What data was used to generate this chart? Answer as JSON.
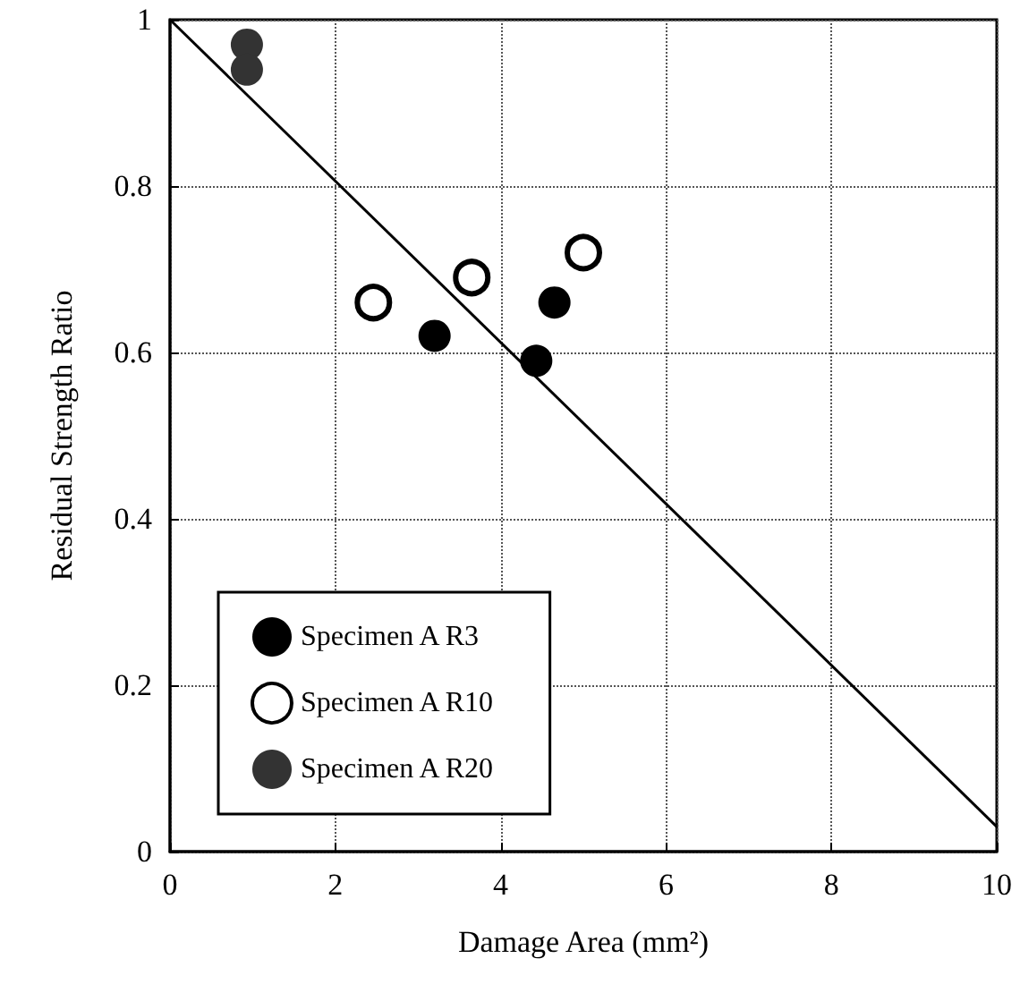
{
  "chart_data": {
    "type": "scatter",
    "xlabel": "Damage Area (mm²)",
    "ylabel": "Residual Strength Ratio",
    "xlim": [
      0,
      10
    ],
    "xticks": [
      0,
      2,
      4,
      6,
      8,
      10
    ],
    "ylim": [
      0,
      1
    ],
    "yticks": [
      0,
      0.2,
      0.4,
      0.6,
      0.8,
      1
    ],
    "grid": true,
    "legend": "bottom left",
    "marker": "circle",
    "series": [
      {
        "name": "Specimen A R3",
        "color": "#000000",
        "x": [
          3.2,
          4.43,
          4.65
        ],
        "values": [
          0.62,
          0.59,
          0.66
        ]
      },
      {
        "name": "Specimen A R10",
        "color": "#ffffff",
        "x": [
          2.46,
          3.65,
          5.0
        ],
        "values": [
          0.66,
          0.69,
          0.72
        ]
      },
      {
        "name": "Specimen A R20",
        "color": "#333333",
        "x": [
          0.93,
          0.93
        ],
        "values": [
          0.97,
          0.94
        ]
      },
      {
        "type": "line",
        "color": "#000000",
        "marker": "none",
        "x": [
          0,
          10
        ],
        "values": [
          1,
          0.03
        ]
      }
    ]
  }
}
